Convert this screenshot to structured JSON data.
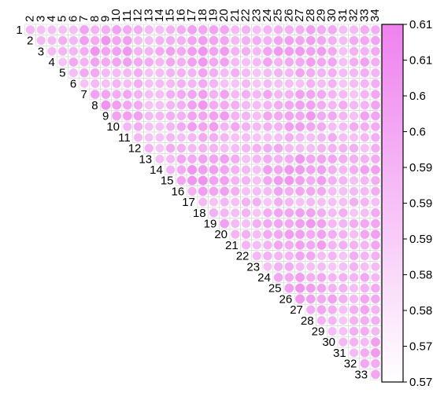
{
  "chart_data": {
    "type": "heatmap",
    "variant": "upper-triangle correlation circles",
    "variables": [
      "1",
      "2",
      "3",
      "4",
      "5",
      "6",
      "7",
      "8",
      "9",
      "10",
      "11",
      "12",
      "13",
      "14",
      "15",
      "16",
      "17",
      "18",
      "19",
      "20",
      "21",
      "22",
      "23",
      "24",
      "25",
      "26",
      "27",
      "28",
      "29",
      "30",
      "31",
      "32",
      "33",
      "34"
    ],
    "colorbar": {
      "min": 0.57,
      "max": 0.61,
      "tick_labels": [
        "0.61",
        "0.61",
        "0.6",
        "0.6",
        "0.59",
        "0.59",
        "0.59",
        "0.58",
        "0.58",
        "0.57",
        "0.57"
      ],
      "low_color": "#ffffff",
      "high_color": "#ee82ee",
      "border_color": "#000000"
    },
    "grid": true,
    "note": "Each upper-triangle cell (row i < column j) holds a circle whose color and size encode a value in the 0.57–0.61 range; individual cell values are approximated from shading."
  }
}
